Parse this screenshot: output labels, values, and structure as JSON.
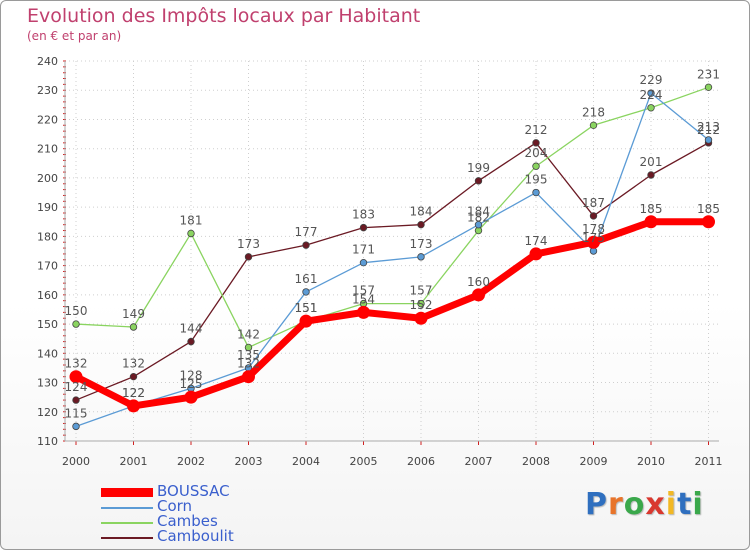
{
  "header": {
    "title": "Evolution des Impôts locaux par Habitant",
    "subtitle": "(en € et par an)"
  },
  "chart_data": {
    "type": "line",
    "title": "Evolution des Impôts locaux par Habitant",
    "subtitle": "(en € et par an)",
    "xlabel": "",
    "ylabel": "",
    "categories": [
      "2000",
      "2001",
      "2002",
      "2003",
      "2004",
      "2005",
      "2006",
      "2007",
      "2008",
      "2009",
      "2010",
      "2011"
    ],
    "y_ticks": [
      "110",
      "120",
      "130",
      "140",
      "150",
      "160",
      "170",
      "180",
      "190",
      "200",
      "210",
      "220",
      "230",
      "240"
    ],
    "ylim": [
      110,
      240
    ],
    "grid": true,
    "legend_position": "bottom-left",
    "series": [
      {
        "name": "Camboulit",
        "color": "#6b1a24",
        "values": [
          124,
          132,
          144,
          173,
          177,
          183,
          184,
          199,
          212,
          187,
          201,
          212
        ],
        "labels": [
          "124",
          "132",
          "144",
          "173",
          "177",
          "183",
          "184",
          "199",
          "212",
          "187",
          "201",
          "212"
        ]
      },
      {
        "name": "Cambes",
        "color": "#8ad460",
        "values": [
          150,
          149,
          181,
          142,
          151,
          157,
          157,
          182,
          204,
          218,
          224,
          231
        ],
        "labels": [
          "150",
          "149",
          "181",
          "142",
          "151",
          "157",
          "157",
          "182",
          "204",
          "218",
          "224",
          "231"
        ]
      },
      {
        "name": "Corn",
        "color": "#5b9bd5",
        "values": [
          115,
          122,
          128,
          135,
          161,
          171,
          173,
          184,
          195,
          175,
          229,
          213
        ],
        "labels": [
          "115",
          "122",
          "128",
          "135",
          "161",
          "171",
          "173",
          "184",
          "195",
          "175",
          "229",
          "213"
        ]
      },
      {
        "name": "BOUSSAC",
        "color": "#ff0000",
        "values": [
          132,
          122,
          125,
          132,
          151,
          154,
          152,
          160,
          174,
          178,
          185,
          185
        ],
        "labels": [
          "132",
          "122",
          "125",
          "132",
          "151",
          "154",
          "152",
          "160",
          "174",
          "178",
          "185",
          "185"
        ]
      }
    ]
  },
  "legend": {
    "items": [
      {
        "label": "BOUSSAC",
        "color": "#ff0000"
      },
      {
        "label": "Corn",
        "color": "#5b9bd5"
      },
      {
        "label": "Cambes",
        "color": "#8ad460"
      },
      {
        "label": "Camboulit",
        "color": "#6b1a24"
      }
    ]
  },
  "logo": {
    "text": "Proxiti",
    "letters": [
      "P",
      "r",
      "o",
      "x",
      "i",
      "t",
      "i"
    ],
    "colors": [
      "#2f6fbf",
      "#e8742a",
      "#3aa84b",
      "#d9382f",
      "#f2b824",
      "#2f6fbf",
      "#3aa84b"
    ]
  }
}
